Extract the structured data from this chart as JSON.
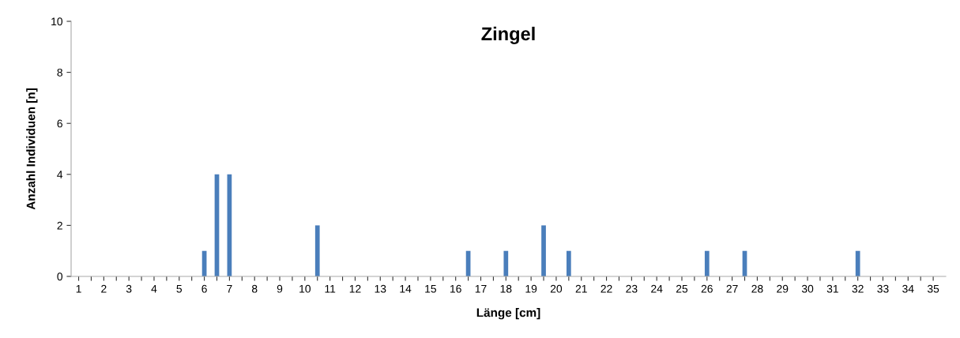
{
  "chart_data": {
    "type": "bar",
    "title": "Zingel",
    "xlabel": "Länge [cm]",
    "ylabel": "Anzahl Individuen [n]",
    "x": [
      6,
      6.5,
      7,
      10.5,
      16.5,
      18,
      19.5,
      20.5,
      26,
      27.5,
      32
    ],
    "values": [
      1,
      4,
      4,
      2,
      1,
      1,
      2,
      1,
      1,
      1,
      1
    ],
    "color": "#4a7ebb",
    "xlim": [
      0.7,
      35.5
    ],
    "xticks": [
      1,
      {
        "value": 1.5,
        "label": null
      },
      2,
      {
        "value": 2.5,
        "label": null
      },
      3,
      {
        "value": 3.5,
        "label": null
      },
      4,
      {
        "value": 4.5,
        "label": null
      },
      5,
      {
        "value": 5.5,
        "label": null
      },
      6,
      {
        "value": 6.5,
        "label": null
      },
      7,
      {
        "value": 7.5,
        "label": null
      },
      8,
      {
        "value": 8.5,
        "label": null
      },
      9,
      {
        "value": 9.5,
        "label": null
      },
      10,
      {
        "value": 10.5,
        "label": null
      },
      11,
      {
        "value": 11.5,
        "label": null
      },
      12,
      {
        "value": 12.5,
        "label": null
      },
      13,
      {
        "value": 13.5,
        "label": null
      },
      14,
      {
        "value": 14.5,
        "label": null
      },
      15,
      {
        "value": 15.5,
        "label": null
      },
      16,
      {
        "value": 16.5,
        "label": null
      },
      17,
      {
        "value": 17.5,
        "label": null
      },
      18,
      {
        "value": 18.5,
        "label": null
      },
      19,
      {
        "value": 19.5,
        "label": null
      },
      20,
      {
        "value": 20.5,
        "label": null
      },
      21,
      {
        "value": 21.5,
        "label": null
      },
      22,
      {
        "value": 22.5,
        "label": null
      },
      23,
      {
        "value": 23.5,
        "label": null
      },
      24,
      {
        "value": 24.5,
        "label": null
      },
      25,
      {
        "value": 25.5,
        "label": null
      },
      26,
      {
        "value": 26.5,
        "label": null
      },
      27,
      {
        "value": 27.5,
        "label": null
      },
      28,
      {
        "value": 28.5,
        "label": null
      },
      29,
      {
        "value": 29.5,
        "label": null
      },
      30,
      {
        "value": 30.5,
        "label": null
      },
      31,
      {
        "value": 31.5,
        "label": null
      },
      32,
      {
        "value": 32.5,
        "label": null
      },
      33,
      {
        "value": 33.5,
        "label": null
      },
      34,
      {
        "value": 34.5,
        "label": null
      },
      35
    ],
    "ylim": [
      0,
      10
    ],
    "yticks": [
      0,
      2,
      4,
      6,
      8,
      10
    ],
    "grid": false,
    "legend": false
  }
}
